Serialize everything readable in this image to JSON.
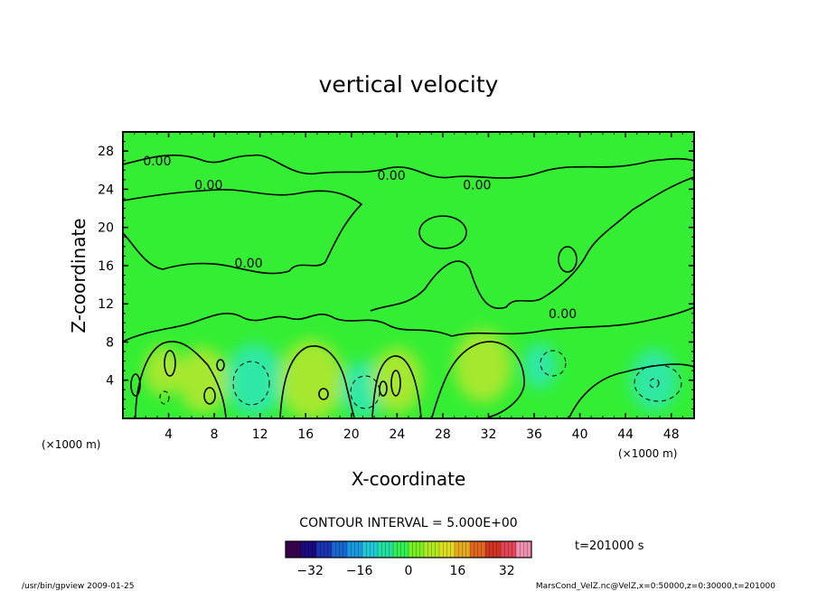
{
  "chart_data": {
    "type": "heatmap",
    "title": "vertical velocity",
    "xlabel": "X-coordinate",
    "ylabel": "Z-coordinate",
    "x_unit": "(×1000 m)",
    "z_unit": "(×1000 m)",
    "xlim": [
      0,
      50
    ],
    "ylim": [
      0,
      30
    ],
    "x_ticks": [
      4,
      8,
      12,
      16,
      20,
      24,
      28,
      32,
      36,
      40,
      44,
      48
    ],
    "y_ticks": [
      4,
      8,
      12,
      16,
      20,
      24,
      28
    ],
    "contour_interval_text": "CONTOUR INTERVAL = 5.000E+00",
    "time_text": "t=201000 s",
    "contour_labels": [
      {
        "text": "0.00",
        "x": 3.0,
        "z": 26.5
      },
      {
        "text": "0.00",
        "x": 7.5,
        "z": 24.0
      },
      {
        "text": "0.00",
        "x": 23.5,
        "z": 25.0
      },
      {
        "text": "0.00",
        "x": 31.0,
        "z": 24.0
      },
      {
        "text": "0.00",
        "x": 11.0,
        "z": 15.8
      },
      {
        "text": "0.00",
        "x": 38.5,
        "z": 10.5
      }
    ],
    "colorbar": {
      "min": -40,
      "max": 40,
      "ticks": [
        -32,
        -16,
        0,
        16,
        32
      ],
      "colors": [
        "#3a0050",
        "#1a0a80",
        "#1a33b0",
        "#1a66d0",
        "#1a99e0",
        "#22c8d8",
        "#22e0a0",
        "#33ee55",
        "#7aee22",
        "#b0e822",
        "#dddd22",
        "#e6aa22",
        "#e06622",
        "#d03322",
        "#e04455",
        "#f090b0"
      ]
    },
    "features": [
      {
        "sign": "positive",
        "x": 3.5,
        "z": 5.0,
        "strength": 6
      },
      {
        "sign": "positive",
        "x": 7.0,
        "z": 4.0,
        "strength": 10
      },
      {
        "sign": "negative",
        "x": 11.5,
        "z": 4.0,
        "strength": -12
      },
      {
        "sign": "positive",
        "x": 16.5,
        "z": 4.0,
        "strength": 14
      },
      {
        "sign": "negative",
        "x": 21.0,
        "z": 3.0,
        "strength": -8
      },
      {
        "sign": "positive",
        "x": 24.0,
        "z": 4.0,
        "strength": 10
      },
      {
        "sign": "positive",
        "x": 31.5,
        "z": 5.5,
        "strength": 12
      },
      {
        "sign": "negative",
        "x": 36.5,
        "z": 5.5,
        "strength": -5
      },
      {
        "sign": "negative",
        "x": 46.5,
        "z": 4.0,
        "strength": -9
      }
    ]
  },
  "footer": {
    "left": "/usr/bin/gpview 2009-01-25",
    "right": "MarsCond_VelZ.nc@VelZ,x=0:50000,z=0:30000,t=201000"
  }
}
